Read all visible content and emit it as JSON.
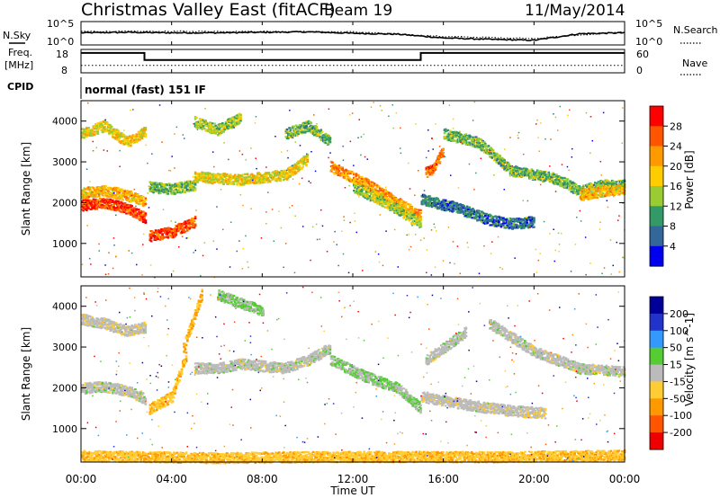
{
  "header": {
    "title": "Christmas Valley East (fitACF)",
    "beam": "Beam 19",
    "date": "11/May/2014"
  },
  "noise_panel": {
    "left_label": "N.Sky",
    "right_label": "N.Search",
    "left_ticks": [
      "10^5",
      "10^0"
    ],
    "right_ticks": [
      "10^5",
      "10^0"
    ]
  },
  "freq_panel": {
    "left_label_1": "Freq.",
    "left_label_2": "[MHz]",
    "right_label": "Nave",
    "left_ticks": [
      "18",
      "8"
    ],
    "right_ticks": [
      "60",
      "0"
    ]
  },
  "cpid": {
    "label": "CPID",
    "text": "normal (fast) 151 IF"
  },
  "x_axis": {
    "ticks": [
      "00:00",
      "04:00",
      "08:00",
      "12:00",
      "16:00",
      "20:00",
      "00:00"
    ],
    "label": "Time UT"
  },
  "y_axis": {
    "label": "Slant Range [km]",
    "ticks": [
      "1000",
      "2000",
      "3000",
      "4000"
    ]
  },
  "power_colorbar": {
    "label": "Power [dB]",
    "ticks": [
      "28",
      "24",
      "20",
      "16",
      "12",
      "8",
      "4"
    ],
    "colors": [
      "#ff0000",
      "#ff5500",
      "#ff9900",
      "#ffcc00",
      "#99cc33",
      "#339966",
      "#336699",
      "#0000ee"
    ]
  },
  "velocity_colorbar": {
    "label": "Velocity [m s^-1]",
    "ticks": [
      "200",
      "100",
      "50",
      "15",
      "-15",
      "-50",
      "-100",
      "-200"
    ],
    "colors": [
      "#000099",
      "#2233cc",
      "#3399ff",
      "#55cc33",
      "#bbbbbb",
      "#ffcc33",
      "#ff9900",
      "#ff5500",
      "#ee0000"
    ]
  },
  "chart_data": [
    {
      "type": "line",
      "panel": "noise",
      "x_unit": "hours UT",
      "series": [
        {
          "name": "N.Sky",
          "x": [
            0,
            2,
            4,
            6,
            8,
            10,
            12,
            14,
            16,
            18,
            20,
            22,
            24
          ],
          "y_log10": [
            2.6,
            2.7,
            2.6,
            2.6,
            2.7,
            2.8,
            2.5,
            2.3,
            1.5,
            1.2,
            1.0,
            2.4,
            2.6
          ]
        },
        {
          "name": "N.Search",
          "x": [
            0,
            4,
            8,
            12,
            16,
            20,
            24
          ],
          "y_log10": [
            2.9,
            2.9,
            2.9,
            2.8,
            1.8,
            1.4,
            2.8
          ]
        }
      ],
      "ylim_log10": [
        0,
        5
      ]
    },
    {
      "type": "line",
      "panel": "frequency",
      "x_unit": "hours UT",
      "series": [
        {
          "name": "Freq.",
          "x": [
            0,
            2.8,
            2.8,
            15.0,
            15.0,
            24
          ],
          "y": [
            16.5,
            16.5,
            13.5,
            13.5,
            16.5,
            16.5
          ]
        },
        {
          "name": "Nave",
          "x": [
            0,
            4,
            8,
            12,
            16,
            20,
            24
          ],
          "y": [
            19,
            19,
            19,
            19,
            19,
            19,
            19
          ]
        }
      ],
      "ylim_left": [
        8,
        18
      ],
      "ylim_right": [
        0,
        60
      ]
    },
    {
      "type": "heatmap",
      "panel": "power",
      "title": "Power [dB]",
      "xlabel": "Time UT",
      "ylabel": "Slant Range [km]",
      "xlim": [
        0,
        24
      ],
      "ylim": [
        180,
        4500
      ],
      "color_scale": [
        4,
        28
      ],
      "bands": [
        {
          "x": [
            0,
            1,
            2,
            2.8
          ],
          "r": [
            1950,
            2020,
            1880,
            1650
          ],
          "power": 26
        },
        {
          "x": [
            0,
            1,
            2,
            2.8
          ],
          "r": [
            2250,
            2320,
            2200,
            2050
          ],
          "power": 20
        },
        {
          "x": [
            0,
            1,
            2,
            2.8
          ],
          "r": [
            3700,
            3900,
            3500,
            3750
          ],
          "power": 18
        },
        {
          "x": [
            3,
            4,
            5
          ],
          "r": [
            1200,
            1300,
            1550
          ],
          "power": 26
        },
        {
          "x": [
            3,
            4,
            5
          ],
          "r": [
            2400,
            2350,
            2450
          ],
          "power": 14
        },
        {
          "x": [
            5,
            7,
            9,
            10
          ],
          "r": [
            2650,
            2580,
            2700,
            3100
          ],
          "power": 18
        },
        {
          "x": [
            5,
            6,
            7
          ],
          "r": [
            4000,
            3800,
            4100
          ],
          "power": 16
        },
        {
          "x": [
            9,
            10,
            11
          ],
          "r": [
            3700,
            3900,
            3500
          ],
          "power": 14
        },
        {
          "x": [
            11,
            12.5,
            14,
            15
          ],
          "r": [
            2900,
            2500,
            2000,
            1700
          ],
          "power": 22
        },
        {
          "x": [
            12,
            13.5,
            15
          ],
          "r": [
            2400,
            2000,
            1500
          ],
          "power": 16
        },
        {
          "x": [
            15.2,
            15.5,
            16
          ],
          "r": [
            2750,
            2850,
            3300
          ],
          "power": 24
        },
        {
          "x": [
            15,
            16.5,
            18,
            19,
            20
          ],
          "r": [
            2100,
            1900,
            1600,
            1500,
            1550
          ],
          "power": 10
        },
        {
          "x": [
            16,
            17.5,
            19,
            21,
            22,
            23,
            24
          ],
          "r": [
            3700,
            3500,
            2800,
            2600,
            2300,
            2450,
            2450
          ],
          "power": 14
        },
        {
          "x": [
            22,
            23,
            24
          ],
          "r": [
            2200,
            2300,
            2350
          ],
          "power": 20
        }
      ]
    },
    {
      "type": "heatmap",
      "panel": "velocity",
      "title": "Velocity [m s^-1]",
      "xlabel": "Time UT",
      "ylabel": "Slant Range [km]",
      "xlim": [
        0,
        24
      ],
      "ylim": [
        180,
        4500
      ],
      "color_scale": [
        -200,
        200
      ],
      "bands": [
        {
          "x": [
            0,
            1,
            2,
            2.8
          ],
          "r": [
            2000,
            2050,
            1950,
            1750
          ],
          "velocity": 0
        },
        {
          "x": [
            0,
            1,
            2,
            2.8
          ],
          "r": [
            3700,
            3600,
            3400,
            3500
          ],
          "velocity": -5
        },
        {
          "x": [
            3,
            4,
            4.6
          ],
          "r": [
            1500,
            1800,
            2800
          ],
          "velocity": -60
        },
        {
          "x": [
            4.5,
            5,
            5.3
          ],
          "r": [
            3000,
            3800,
            4300
          ],
          "velocity": -70
        },
        {
          "x": [
            5,
            6,
            7,
            9,
            10,
            11
          ],
          "r": [
            2500,
            2500,
            2600,
            2500,
            2700,
            3000
          ],
          "velocity": 0
        },
        {
          "x": [
            6,
            7,
            8
          ],
          "r": [
            4300,
            4100,
            3900
          ],
          "velocity": 30
        },
        {
          "x": [
            11,
            12.5,
            14,
            15
          ],
          "r": [
            2700,
            2300,
            2000,
            1500
          ],
          "velocity": 25
        },
        {
          "x": [
            15.2,
            16,
            17
          ],
          "r": [
            2700,
            3000,
            3400
          ],
          "velocity": 0
        },
        {
          "x": [
            15,
            17,
            19,
            20.5
          ],
          "r": [
            1800,
            1600,
            1450,
            1400
          ],
          "velocity": -5
        },
        {
          "x": [
            18,
            20,
            22,
            24
          ],
          "r": [
            3600,
            2900,
            2500,
            2400
          ],
          "velocity": 0
        },
        {
          "x": [
            0,
            6,
            12,
            18,
            24
          ],
          "r": [
            350,
            300,
            330,
            320,
            360
          ],
          "velocity": -60
        }
      ]
    }
  ]
}
